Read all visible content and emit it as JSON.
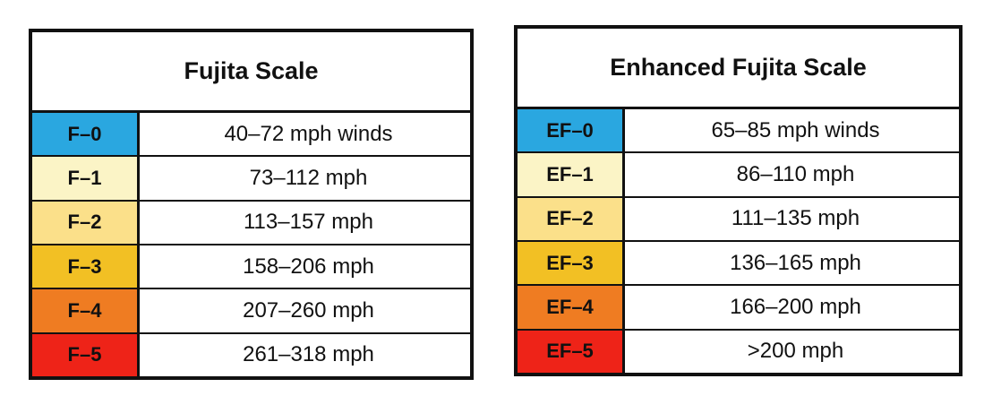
{
  "fujita": {
    "title": "Fujita Scale",
    "rows": [
      {
        "rating": "F–0",
        "speed": "40–72 mph winds",
        "color": "#2aa7e0"
      },
      {
        "rating": "F–1",
        "speed": "73–112 mph",
        "color": "#fbf4c6"
      },
      {
        "rating": "F–2",
        "speed": "113–157 mph",
        "color": "#fbe08a"
      },
      {
        "rating": "F–3",
        "speed": "158–206 mph",
        "color": "#f2c024"
      },
      {
        "rating": "F–4",
        "speed": "207–260 mph",
        "color": "#ef7c22"
      },
      {
        "rating": "F–5",
        "speed": "261–318 mph",
        "color": "#ee2318"
      }
    ]
  },
  "enhanced": {
    "title": "Enhanced Fujita Scale",
    "rows": [
      {
        "rating": "EF–0",
        "speed": "65–85 mph winds",
        "color": "#2aa7e0"
      },
      {
        "rating": "EF–1",
        "speed": "86–110 mph",
        "color": "#fbf4c6"
      },
      {
        "rating": "EF–2",
        "speed": "111–135 mph",
        "color": "#fbe08a"
      },
      {
        "rating": "EF–3",
        "speed": "136–165 mph",
        "color": "#f2c024"
      },
      {
        "rating": "EF–4",
        "speed": "166–200 mph",
        "color": "#ef7c22"
      },
      {
        "rating": "EF–5",
        "speed": ">200 mph",
        "color": "#ee2318"
      }
    ]
  }
}
